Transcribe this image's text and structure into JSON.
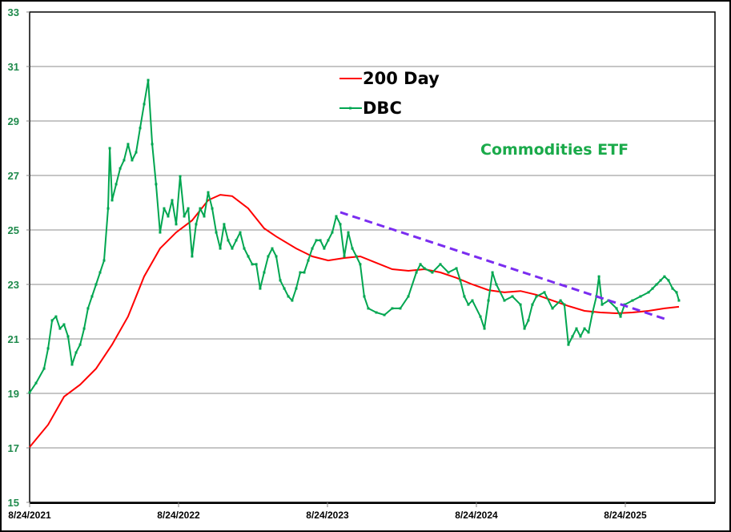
{
  "chart_data": {
    "type": "line",
    "title": "",
    "annotation": "Commodities ETF",
    "xlabel": "",
    "ylabel": "",
    "x_unit": "years since 8/24/2021",
    "xlim": [
      0,
      4.6
    ],
    "ylim": [
      15,
      33
    ],
    "yticks": [
      "15",
      "17",
      "19",
      "21",
      "23",
      "25",
      "27",
      "29",
      "31",
      "33"
    ],
    "xticks": [
      {
        "t": 0,
        "label": "8/24/2021"
      },
      {
        "t": 1,
        "label": "8/24/2022"
      },
      {
        "t": 2,
        "label": "8/24/2023"
      },
      {
        "t": 3,
        "label": "8/24/2024"
      },
      {
        "t": 4,
        "label": "8/24/2025"
      }
    ],
    "grid": true,
    "legend_position": "top-center",
    "colors": {
      "ma": "#ff0000",
      "dbc": "#00a650",
      "trend": "#7a2cf0",
      "grid": "#8c8c8c",
      "ytick": "#1f8a4c",
      "annotation": "#1aaa4a"
    },
    "series": [
      {
        "name": "200 Day",
        "points": [
          [
            0,
            17.03
          ],
          [
            0.124,
            17.85
          ],
          [
            0.231,
            18.88
          ],
          [
            0.339,
            19.32
          ],
          [
            0.446,
            19.91
          ],
          [
            0.554,
            20.79
          ],
          [
            0.661,
            21.82
          ],
          [
            0.769,
            23.29
          ],
          [
            0.876,
            24.32
          ],
          [
            0.984,
            24.91
          ],
          [
            1.091,
            25.35
          ],
          [
            1.199,
            26.09
          ],
          [
            1.28,
            26.29
          ],
          [
            1.36,
            26.24
          ],
          [
            1.468,
            25.79
          ],
          [
            1.575,
            25.06
          ],
          [
            1.656,
            24.76
          ],
          [
            1.79,
            24.32
          ],
          [
            1.898,
            24.03
          ],
          [
            2.005,
            23.88
          ],
          [
            2.113,
            23.97
          ],
          [
            2.22,
            24.03
          ],
          [
            2.328,
            23.79
          ],
          [
            2.435,
            23.56
          ],
          [
            2.543,
            23.5
          ],
          [
            2.651,
            23.56
          ],
          [
            2.758,
            23.44
          ],
          [
            2.866,
            23.24
          ],
          [
            2.973,
            23.0
          ],
          [
            3.081,
            22.79
          ],
          [
            3.188,
            22.71
          ],
          [
            3.296,
            22.76
          ],
          [
            3.403,
            22.62
          ],
          [
            3.511,
            22.41
          ],
          [
            3.618,
            22.21
          ],
          [
            3.726,
            22.03
          ],
          [
            3.833,
            21.97
          ],
          [
            3.941,
            21.94
          ],
          [
            4.048,
            21.97
          ],
          [
            4.156,
            22.03
          ],
          [
            4.263,
            22.12
          ],
          [
            4.36,
            22.18
          ]
        ]
      },
      {
        "name": "DBC",
        "points": [
          [
            0,
            19.03
          ],
          [
            0.043,
            19.38
          ],
          [
            0.097,
            19.91
          ],
          [
            0.124,
            20.65
          ],
          [
            0.151,
            21.68
          ],
          [
            0.177,
            21.82
          ],
          [
            0.204,
            21.38
          ],
          [
            0.231,
            21.53
          ],
          [
            0.258,
            21.09
          ],
          [
            0.285,
            20.06
          ],
          [
            0.312,
            20.5
          ],
          [
            0.339,
            20.79
          ],
          [
            0.366,
            21.38
          ],
          [
            0.392,
            22.12
          ],
          [
            0.419,
            22.56
          ],
          [
            0.446,
            23.0
          ],
          [
            0.473,
            23.44
          ],
          [
            0.5,
            23.88
          ],
          [
            0.527,
            25.79
          ],
          [
            0.538,
            28.0
          ],
          [
            0.554,
            26.09
          ],
          [
            0.581,
            26.68
          ],
          [
            0.608,
            27.26
          ],
          [
            0.634,
            27.56
          ],
          [
            0.661,
            28.15
          ],
          [
            0.688,
            27.56
          ],
          [
            0.715,
            27.85
          ],
          [
            0.742,
            28.74
          ],
          [
            0.769,
            29.62
          ],
          [
            0.796,
            30.5
          ],
          [
            0.823,
            28.15
          ],
          [
            0.849,
            26.68
          ],
          [
            0.876,
            24.91
          ],
          [
            0.903,
            25.79
          ],
          [
            0.93,
            25.5
          ],
          [
            0.957,
            26.09
          ],
          [
            0.984,
            25.21
          ],
          [
            1.011,
            26.97
          ],
          [
            1.038,
            25.5
          ],
          [
            1.065,
            25.79
          ],
          [
            1.091,
            24.03
          ],
          [
            1.118,
            25.21
          ],
          [
            1.145,
            25.79
          ],
          [
            1.172,
            25.5
          ],
          [
            1.199,
            26.38
          ],
          [
            1.226,
            25.79
          ],
          [
            1.253,
            24.91
          ],
          [
            1.28,
            24.32
          ],
          [
            1.306,
            25.21
          ],
          [
            1.333,
            24.62
          ],
          [
            1.36,
            24.32
          ],
          [
            1.387,
            24.62
          ],
          [
            1.414,
            24.91
          ],
          [
            1.441,
            24.32
          ],
          [
            1.468,
            24.03
          ],
          [
            1.495,
            23.74
          ],
          [
            1.522,
            23.74
          ],
          [
            1.548,
            22.85
          ],
          [
            1.575,
            23.44
          ],
          [
            1.602,
            24.03
          ],
          [
            1.629,
            24.32
          ],
          [
            1.656,
            24.03
          ],
          [
            1.683,
            23.15
          ],
          [
            1.71,
            22.85
          ],
          [
            1.737,
            22.56
          ],
          [
            1.763,
            22.41
          ],
          [
            1.79,
            22.85
          ],
          [
            1.817,
            23.44
          ],
          [
            1.844,
            23.44
          ],
          [
            1.871,
            23.88
          ],
          [
            1.898,
            24.32
          ],
          [
            1.925,
            24.62
          ],
          [
            1.952,
            24.62
          ],
          [
            1.978,
            24.32
          ],
          [
            2.005,
            24.62
          ],
          [
            2.032,
            24.91
          ],
          [
            2.059,
            25.5
          ],
          [
            2.086,
            25.21
          ],
          [
            2.113,
            24.03
          ],
          [
            2.14,
            24.91
          ],
          [
            2.167,
            24.32
          ],
          [
            2.194,
            24.03
          ],
          [
            2.22,
            23.74
          ],
          [
            2.247,
            22.56
          ],
          [
            2.274,
            22.12
          ],
          [
            2.328,
            21.97
          ],
          [
            2.382,
            21.88
          ],
          [
            2.435,
            22.12
          ],
          [
            2.489,
            22.12
          ],
          [
            2.543,
            22.56
          ],
          [
            2.597,
            23.44
          ],
          [
            2.624,
            23.74
          ],
          [
            2.651,
            23.59
          ],
          [
            2.704,
            23.44
          ],
          [
            2.758,
            23.74
          ],
          [
            2.812,
            23.44
          ],
          [
            2.866,
            23.59
          ],
          [
            2.892,
            23.15
          ],
          [
            2.919,
            22.56
          ],
          [
            2.946,
            22.26
          ],
          [
            2.973,
            22.41
          ],
          [
            3.027,
            21.82
          ],
          [
            3.054,
            21.38
          ],
          [
            3.081,
            22.41
          ],
          [
            3.108,
            23.44
          ],
          [
            3.134,
            23.0
          ],
          [
            3.188,
            22.41
          ],
          [
            3.242,
            22.56
          ],
          [
            3.296,
            22.26
          ],
          [
            3.323,
            21.38
          ],
          [
            3.349,
            21.68
          ],
          [
            3.376,
            22.26
          ],
          [
            3.403,
            22.56
          ],
          [
            3.457,
            22.71
          ],
          [
            3.511,
            22.12
          ],
          [
            3.565,
            22.41
          ],
          [
            3.591,
            22.26
          ],
          [
            3.618,
            20.79
          ],
          [
            3.645,
            21.09
          ],
          [
            3.672,
            21.38
          ],
          [
            3.699,
            21.09
          ],
          [
            3.726,
            21.38
          ],
          [
            3.753,
            21.24
          ],
          [
            3.78,
            21.97
          ],
          [
            3.806,
            22.56
          ],
          [
            3.823,
            23.29
          ],
          [
            3.844,
            22.26
          ],
          [
            3.887,
            22.41
          ],
          [
            3.941,
            22.12
          ],
          [
            3.968,
            21.82
          ],
          [
            3.995,
            22.26
          ],
          [
            4.048,
            22.41
          ],
          [
            4.102,
            22.56
          ],
          [
            4.156,
            22.71
          ],
          [
            4.183,
            22.85
          ],
          [
            4.21,
            23.0
          ],
          [
            4.237,
            23.15
          ],
          [
            4.263,
            23.29
          ],
          [
            4.29,
            23.15
          ],
          [
            4.317,
            22.85
          ],
          [
            4.344,
            22.71
          ],
          [
            4.36,
            22.41
          ]
        ]
      }
    ],
    "trendline": {
      "name": "Resistance trendline",
      "style": "dashed",
      "points": [
        [
          2.086,
          25.65
        ],
        [
          4.263,
          21.74
        ]
      ]
    }
  }
}
